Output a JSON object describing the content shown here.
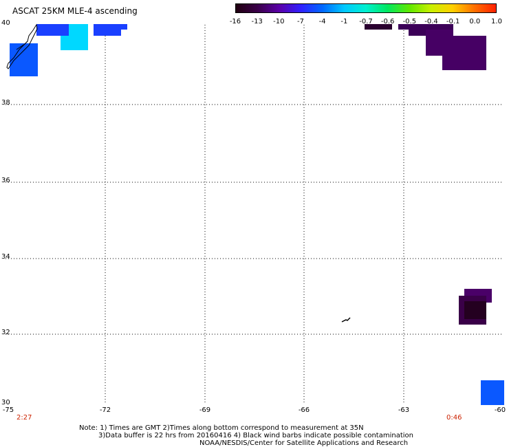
{
  "title": "ASCAT 25KM MLE-4 ascending",
  "colorbar": {
    "labels": [
      "-16",
      "-13",
      "-10",
      "-7",
      "-4",
      "-1",
      "-0.7",
      "-0.6",
      "-0.5",
      "-0.4",
      "-0.1",
      "0.0",
      "1.0"
    ],
    "colors": [
      "#200010",
      "#3a0048",
      "#5a00a8",
      "#3020ff",
      "#0068ff",
      "#00c8ff",
      "#00f0d0",
      "#00e860",
      "#60e800",
      "#c8f000",
      "#ffd000",
      "#ff7000",
      "#ff2000"
    ]
  },
  "map": {
    "lon_ticks": [
      "-75",
      "-72",
      "-69",
      "-66",
      "-63",
      "-60"
    ],
    "lat_ticks": [
      "40",
      "38",
      "36",
      "34",
      "32",
      "30"
    ],
    "time_start": "2:27",
    "time_end": "0:46",
    "grid": true
  },
  "notes": {
    "line1": "Note: 1) Times are GMT 2)Times along bottom correspond to measurement at 35N",
    "line2": "3)Data buffer is 22 hrs from 20160416 4) Black wind barbs indicate possible contamination",
    "line3": "NOAA/NESDIS/Center for Satellite Applications and Research"
  }
}
